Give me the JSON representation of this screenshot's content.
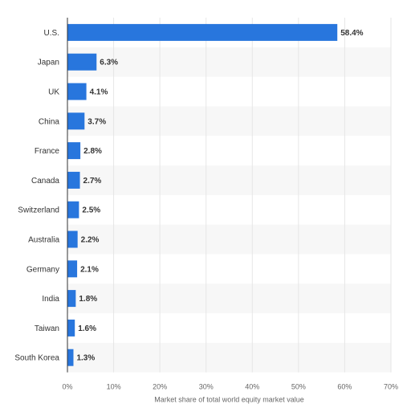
{
  "chart_data": {
    "type": "bar",
    "orientation": "horizontal",
    "categories": [
      "U.S.",
      "Japan",
      "UK",
      "China",
      "France",
      "Canada",
      "Switzerland",
      "Australia",
      "Germany",
      "India",
      "Taiwan",
      "South Korea"
    ],
    "values": [
      58.4,
      6.3,
      4.1,
      3.7,
      2.8,
      2.7,
      2.5,
      2.2,
      2.1,
      1.8,
      1.6,
      1.3
    ],
    "value_labels": [
      "58.4%",
      "6.3%",
      "4.1%",
      "3.7%",
      "2.8%",
      "2.7%",
      "2.5%",
      "2.2%",
      "2.1%",
      "1.8%",
      "1.6%",
      "1.3%"
    ],
    "xlabel": "Market share of total world equity market value",
    "xlim": [
      0,
      70
    ],
    "xticks": [
      0,
      10,
      20,
      30,
      40,
      50,
      60,
      70
    ],
    "xtick_labels": [
      "0%",
      "10%",
      "20%",
      "30%",
      "40%",
      "50%",
      "60%",
      "70%"
    ],
    "grid": true,
    "legend": "none",
    "colors": {
      "bar": "#2876dd",
      "row_stripe": "#f7f7f7",
      "grid": "#e6e6e6",
      "axis": "#333333"
    }
  }
}
